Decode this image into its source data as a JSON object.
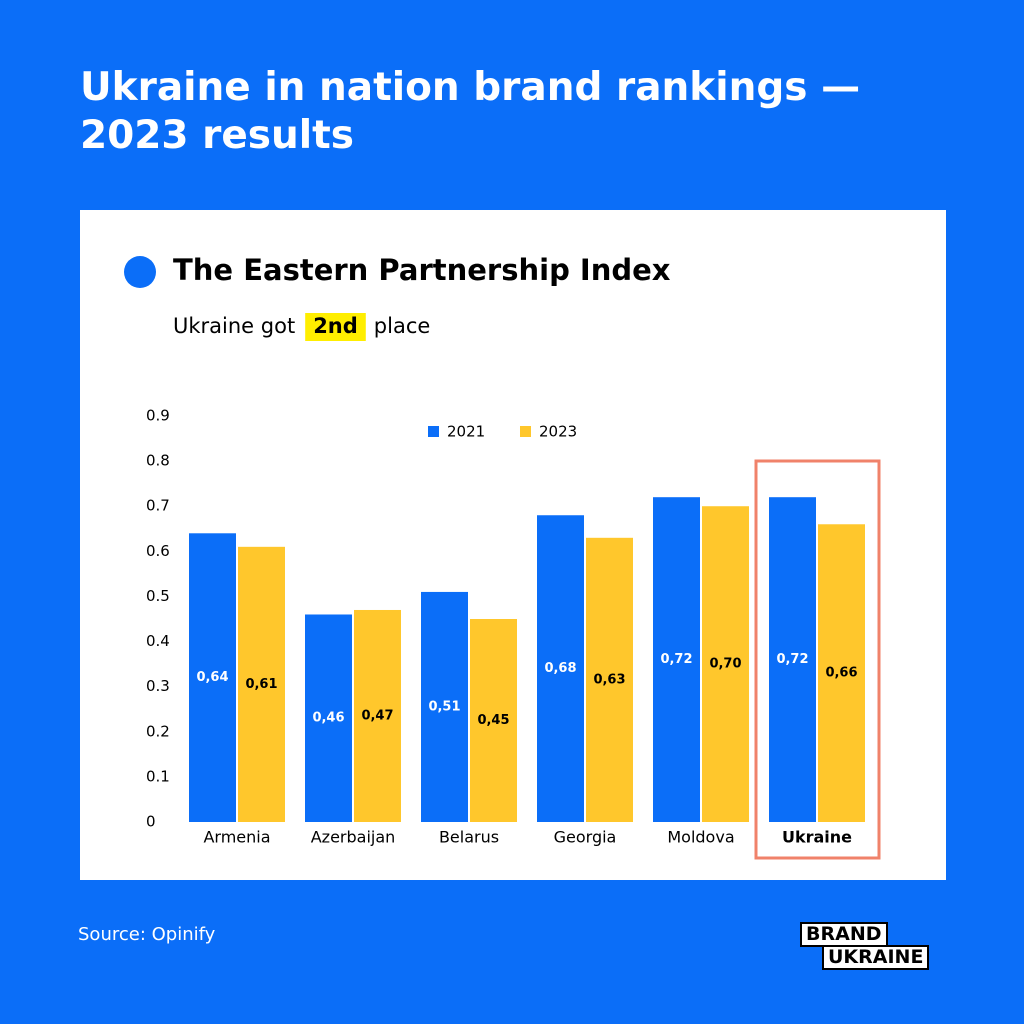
{
  "header": {
    "title": "Ukraine in nation brand rankings — 2023 results"
  },
  "chart_data": {
    "type": "bar",
    "title": "The Eastern Partnership Index",
    "subtitle": {
      "before": "Ukraine got",
      "highlight": "2nd",
      "after": "place"
    },
    "categories": [
      "Armenia",
      "Azerbaijan",
      "Belarus",
      "Georgia",
      "Moldova",
      "Ukraine"
    ],
    "series": [
      {
        "name": "2021",
        "color": "#0b6ef8",
        "values": [
          0.64,
          0.46,
          0.51,
          0.68,
          0.72,
          0.72
        ],
        "value_labels": [
          "0,64",
          "0,46",
          "0,51",
          "0,68",
          "0,72",
          "0,72"
        ]
      },
      {
        "name": "2023",
        "color": "#ffc72c",
        "values": [
          0.61,
          0.47,
          0.45,
          0.63,
          0.7,
          0.66
        ],
        "value_labels": [
          "0,61",
          "0,47",
          "0,45",
          "0,63",
          "0,70",
          "0,66"
        ]
      }
    ],
    "ylim": [
      0,
      0.9
    ],
    "yticks": [
      0,
      0.1,
      0.2,
      0.3,
      0.4,
      0.5,
      0.6,
      0.7,
      0.8,
      0.9
    ],
    "grid": false,
    "highlight_index": 5
  },
  "footer": {
    "source": "Source: Opinify",
    "logo": [
      "BRAND",
      "UKRAINE"
    ]
  }
}
